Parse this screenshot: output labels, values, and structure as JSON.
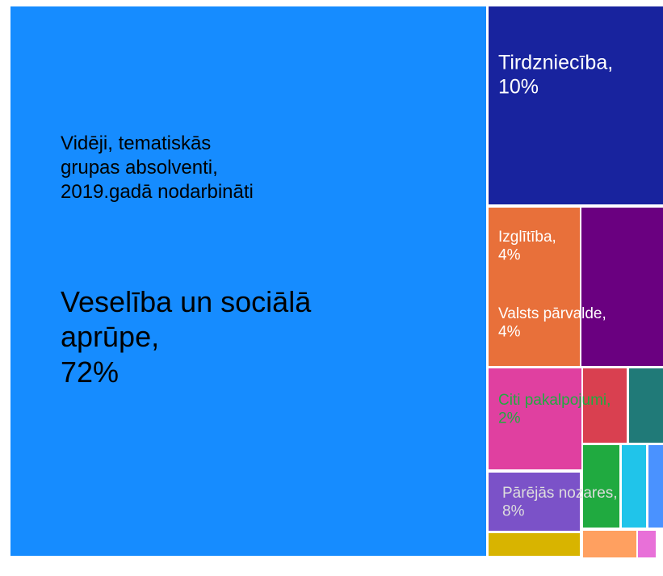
{
  "chart_data": {
    "type": "treemap",
    "annotation": "Vidēji, tematiskās grupas absolventi, 2019.gadā nodarbināti",
    "categories": [
      "Veselība un sociālā aprūpe,",
      "Tirdzniecība,",
      "Izglītība,",
      "Valsts pārvalde,",
      "Citi pakalpojumi,",
      "Pārējās nozares,",
      null,
      null,
      null,
      null,
      null,
      null,
      null,
      null
    ],
    "values": [
      72,
      10,
      4,
      4,
      2,
      8,
      1,
      1,
      1,
      1,
      1,
      1,
      1,
      1
    ],
    "value_labels": [
      "72%",
      "10%",
      "4%",
      "4%",
      "2%",
      "8%",
      null,
      null,
      null,
      null,
      null,
      null,
      null,
      null
    ],
    "colors": [
      "#168cff",
      "#18239e",
      "#e8703a",
      "#6a0080",
      "#e040a0",
      "#7b52c8",
      "#d94050",
      "#207a78",
      "#20aa40",
      "#20c4ea",
      "#4a92ff",
      "#d8b400",
      "#ffa060",
      "#e870d8"
    ]
  }
}
